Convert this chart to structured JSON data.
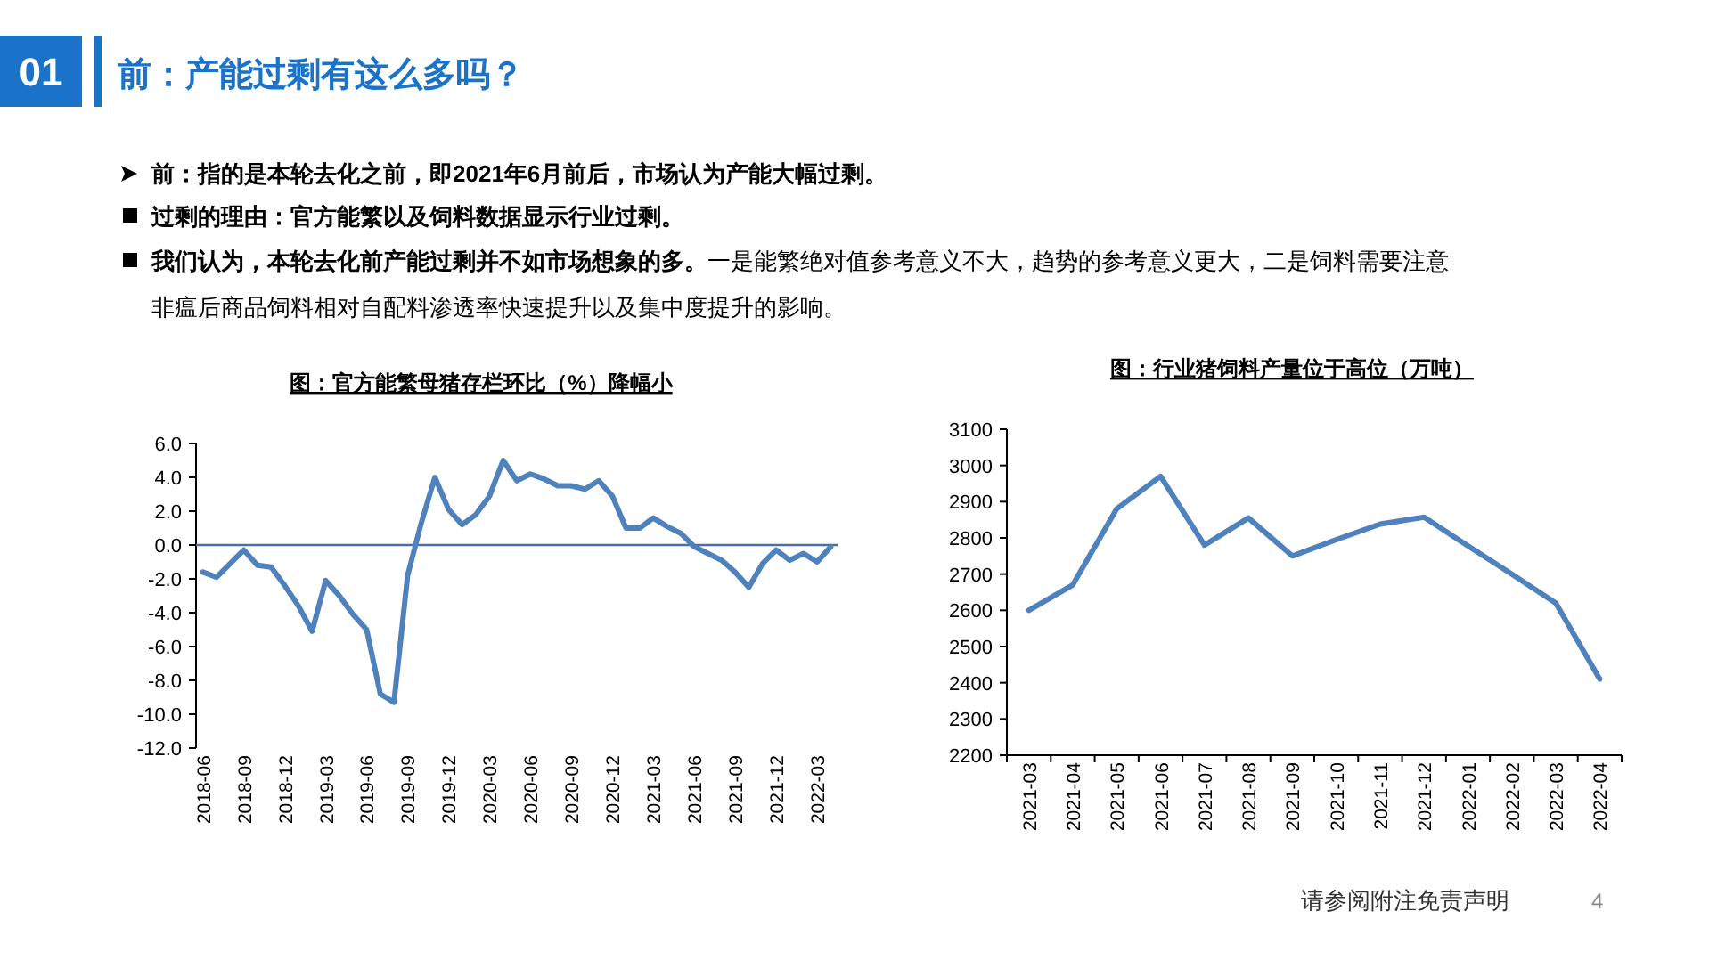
{
  "chart_data": [
    {
      "type": "other",
      "title": "前：产能过剩有这么多吗？",
      "annotations": [
        "01",
        "前：指的是本轮去化之前，即2021年6月前后，市场认为产能大幅过剩。",
        "过剩的理由：官方能繁以及饲料数据显示行业过剩。",
        "我们认为，本轮去化前产能过剩并不如市场想象的多。",
        "一是能繁绝对值参考意义不大，趋势的参考意义更大，二是饲料需要注意非瘟后商品饲料相对自配料渗透率快速提升以及集中度提升的影响。",
        "请参阅附注免责声明",
        "4"
      ]
    },
    {
      "type": "line",
      "title": "图：官方能繁母猪存栏环比（%）降幅小",
      "categories": [
        "2018-06",
        null,
        null,
        "2018-09",
        null,
        null,
        "2018-12",
        null,
        null,
        "2019-03",
        null,
        null,
        "2019-06",
        null,
        null,
        "2019-09",
        null,
        null,
        "2019-12",
        null,
        null,
        "2020-03",
        null,
        null,
        "2020-06",
        null,
        null,
        "2020-09",
        null,
        null,
        "2020-12",
        null,
        null,
        "2021-03",
        null,
        null,
        "2021-06",
        null,
        null,
        "2021-09",
        null,
        null,
        "2021-12",
        null,
        null,
        "2022-03",
        null
      ],
      "series": [
        {
          "color": "#4f81bd",
          "values": [
            -1.6,
            -1.9,
            -1.1,
            -0.3,
            -1.2,
            -1.3,
            -2.4,
            -3.6,
            -5.1,
            -2.1,
            -3.0,
            -4.1,
            -5.0,
            -8.8,
            -9.3,
            -1.8,
            1.3,
            4.0,
            2.1,
            1.2,
            1.8,
            2.9,
            5.0,
            3.8,
            4.2,
            3.9,
            3.5,
            3.5,
            3.3,
            3.8,
            2.9,
            1.0,
            1.0,
            1.6,
            1.1,
            0.7,
            -0.1,
            -0.5,
            -0.9,
            -1.6,
            -2.5,
            -1.1,
            -0.3,
            -0.9,
            -0.5,
            -1.0,
            -0.1
          ]
        }
      ],
      "ylim": [
        -12,
        6
      ],
      "yticks": [
        {
          "value": 6,
          "label": "6.0"
        },
        {
          "value": 4,
          "label": "4.0"
        },
        {
          "value": 2,
          "label": "2.0"
        },
        {
          "value": 0,
          "label": "0.0"
        },
        {
          "value": -2,
          "label": "-2.0"
        },
        {
          "value": -4,
          "label": "-4.0"
        },
        {
          "value": -6,
          "label": "-6.0"
        },
        {
          "value": -8,
          "label": "-8.0"
        },
        {
          "value": -10,
          "label": "-10.0"
        },
        {
          "value": -12,
          "label": "-12.0"
        }
      ],
      "ref_lines": [
        {
          "axis": "y",
          "value": 0,
          "color": "#4a6fa5"
        }
      ],
      "grid": false,
      "marker": "none",
      "line_style": "solid"
    },
    {
      "type": "line",
      "title": "图：行业猪饲料产量位于高位（万吨）",
      "categories": [
        "2021-03",
        "2021-04",
        "2021-05",
        "2021-06",
        "2021-07",
        "2021-08",
        "2021-09",
        "2021-10",
        "2021-11",
        "2021-12",
        "2022-01",
        "2022-02",
        "2022-03",
        "2022-04"
      ],
      "series": [
        {
          "color": "#4f81bd",
          "values": [
            2600,
            2670,
            2880,
            2970,
            2780,
            2855,
            2750,
            2795,
            2838,
            2857,
            2778,
            2700,
            2620,
            2410
          ]
        }
      ],
      "ylim": [
        2200,
        3100
      ],
      "yticks": [
        2200,
        2300,
        2400,
        2500,
        2600,
        2700,
        2800,
        2900,
        3000,
        3100
      ],
      "grid": false,
      "marker": "none",
      "line_style": "solid"
    }
  ]
}
